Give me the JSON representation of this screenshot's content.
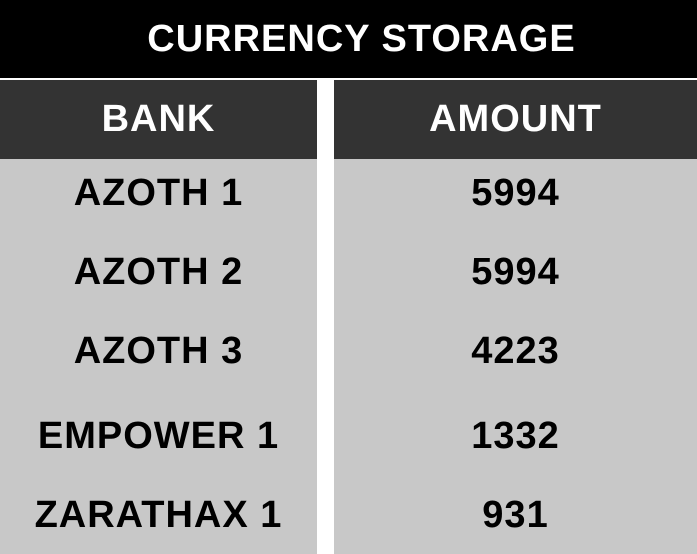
{
  "title": "CURRENCY STORAGE",
  "columns": {
    "bank": "BANK",
    "amount": "AMOUNT"
  },
  "rows": [
    {
      "bank": "AZOTH 1",
      "amount": "5994"
    },
    {
      "bank": "AZOTH 2",
      "amount": "5994"
    },
    {
      "bank": "AZOTH 3",
      "amount": "4223"
    },
    {
      "bank": "EMPOWER 1",
      "amount": "1332"
    },
    {
      "bank": "ZARATHAX 1",
      "amount": "931"
    }
  ],
  "colors": {
    "title_bg": "#000000",
    "header_bg": "#333333",
    "cell_bg": "#c8c8c8",
    "header_text": "#ffffff",
    "cell_text": "#000000"
  }
}
